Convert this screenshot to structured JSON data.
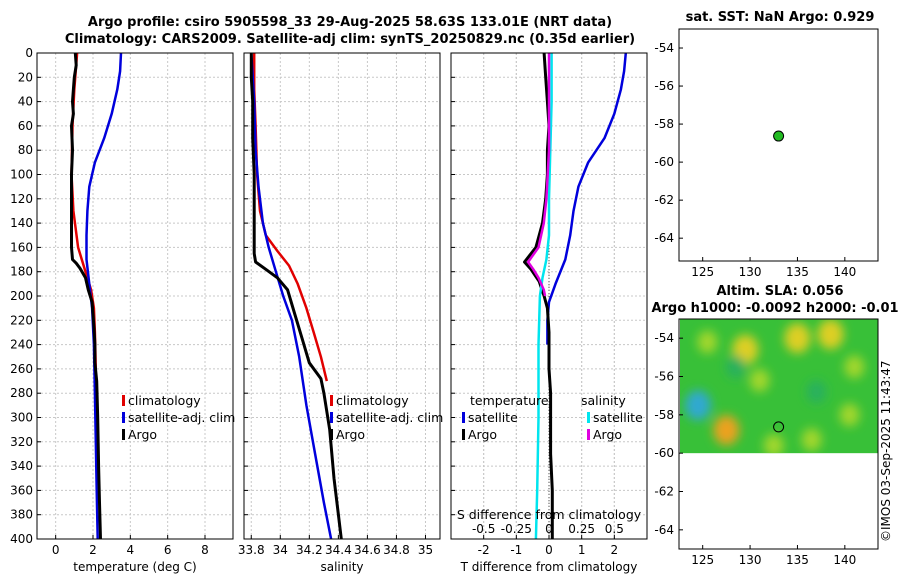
{
  "titles": {
    "main": "Argo profile: csiro 5905598_33 29-Aug-2025 58.63S 133.01E (NRT data)",
    "sub": "Climatology: CARS2009. Satellite-adj clim: synTS_20250829.nc (0.35d earlier)"
  },
  "credit": "©IMOS 03-Sep-2025 11:43:47",
  "colors": {
    "argo": "#000000",
    "climatology": "#e10000",
    "satellite": "#0000dc",
    "sat_salinity": "#00e5ee",
    "argo_salinity": "#e000e0",
    "argo_marker": "#22bb22"
  },
  "chart_data": [
    {
      "type": "line",
      "title": "",
      "xlabel": "temperature (deg C)",
      "ylabel": "",
      "xlim": [
        -1,
        9.5
      ],
      "ylim": [
        400,
        0
      ],
      "xticks": [
        0,
        2,
        4,
        6,
        8
      ],
      "yticks": [
        0,
        20,
        40,
        60,
        80,
        100,
        120,
        140,
        160,
        180,
        200,
        220,
        240,
        260,
        280,
        300,
        320,
        340,
        360,
        380,
        400
      ],
      "grid": true,
      "legend": {
        "position": "lower-right",
        "entries": [
          "climatology",
          "satellite-adj. clim",
          "Argo"
        ]
      },
      "series": [
        {
          "name": "climatology",
          "color": "#e10000",
          "points": [
            [
              1.15,
              0
            ],
            [
              1.1,
              10
            ],
            [
              1.0,
              30
            ],
            [
              0.9,
              60
            ],
            [
              0.85,
              100
            ],
            [
              0.95,
              130
            ],
            [
              1.2,
              160
            ],
            [
              1.6,
              180
            ],
            [
              1.9,
              195
            ],
            [
              2.05,
              210
            ],
            [
              2.1,
              230
            ],
            [
              2.15,
              260
            ]
          ]
        },
        {
          "name": "satellite-adj. clim",
          "color": "#0000dc",
          "points": [
            [
              3.5,
              0
            ],
            [
              3.45,
              15
            ],
            [
              3.3,
              30
            ],
            [
              3.0,
              50
            ],
            [
              2.6,
              70
            ],
            [
              2.1,
              90
            ],
            [
              1.8,
              110
            ],
            [
              1.7,
              130
            ],
            [
              1.65,
              150
            ],
            [
              1.65,
              170
            ],
            [
              1.8,
              190
            ],
            [
              1.95,
              210
            ],
            [
              2.05,
              240
            ],
            [
              2.1,
              280
            ],
            [
              2.15,
              320
            ],
            [
              2.2,
              360
            ],
            [
              2.25,
              400
            ]
          ]
        },
        {
          "name": "Argo",
          "color": "#000000",
          "points": [
            [
              1.05,
              0
            ],
            [
              1.1,
              10
            ],
            [
              1.0,
              20
            ],
            [
              0.95,
              30
            ],
            [
              0.9,
              40
            ],
            [
              0.95,
              50
            ],
            [
              0.85,
              60
            ],
            [
              0.9,
              80
            ],
            [
              0.85,
              100
            ],
            [
              0.85,
              120
            ],
            [
              0.85,
              140
            ],
            [
              0.85,
              160
            ],
            [
              0.9,
              170
            ],
            [
              1.1,
              173
            ],
            [
              1.3,
              177
            ],
            [
              1.6,
              185
            ],
            [
              1.75,
              195
            ],
            [
              1.95,
              205
            ],
            [
              2.0,
              215
            ],
            [
              2.05,
              225
            ],
            [
              2.1,
              240
            ],
            [
              2.1,
              255
            ],
            [
              2.2,
              270
            ],
            [
              2.25,
              300
            ],
            [
              2.3,
              340
            ],
            [
              2.35,
              370
            ],
            [
              2.4,
              400
            ]
          ]
        }
      ]
    },
    {
      "type": "line",
      "xlabel": "salinity",
      "xlim": [
        33.75,
        35.1
      ],
      "ylim": [
        400,
        0
      ],
      "xticks": [
        33.8,
        34,
        34.2,
        34.4,
        34.6,
        34.8,
        35
      ],
      "xtick_labels": [
        "33.8",
        "34",
        "34.2",
        "34.4",
        "34.6",
        "34.8",
        "35"
      ],
      "grid": true,
      "legend": {
        "position": "lower-right",
        "entries": [
          "climatology",
          "satellite-adj. clim",
          "Argo"
        ]
      },
      "series": [
        {
          "name": "climatology",
          "color": "#e10000",
          "points": [
            [
              33.82,
              0
            ],
            [
              33.82,
              30
            ],
            [
              33.83,
              60
            ],
            [
              33.84,
              100
            ],
            [
              33.86,
              130
            ],
            [
              33.9,
              150
            ],
            [
              33.98,
              163
            ],
            [
              34.06,
              175
            ],
            [
              34.12,
              190
            ],
            [
              34.18,
              210
            ],
            [
              34.23,
              230
            ],
            [
              34.28,
              250
            ],
            [
              34.32,
              270
            ]
          ]
        },
        {
          "name": "satellite-adj. clim",
          "color": "#0000dc",
          "points": [
            [
              33.8,
              0
            ],
            [
              33.82,
              40
            ],
            [
              33.83,
              80
            ],
            [
              33.85,
              110
            ],
            [
              33.88,
              140
            ],
            [
              33.92,
              160
            ],
            [
              33.97,
              180
            ],
            [
              34.02,
              200
            ],
            [
              34.08,
              220
            ],
            [
              34.13,
              250
            ],
            [
              34.18,
              290
            ],
            [
              34.24,
              330
            ],
            [
              34.3,
              370
            ],
            [
              34.35,
              400
            ]
          ]
        },
        {
          "name": "Argo",
          "color": "#000000",
          "points": [
            [
              33.8,
              0
            ],
            [
              33.8,
              20
            ],
            [
              33.81,
              40
            ],
            [
              33.81,
              70
            ],
            [
              33.82,
              100
            ],
            [
              33.82,
              130
            ],
            [
              33.82,
              150
            ],
            [
              33.82,
              165
            ],
            [
              33.83,
              172
            ],
            [
              33.9,
              178
            ],
            [
              33.98,
              185
            ],
            [
              34.05,
              195
            ],
            [
              34.1,
              215
            ],
            [
              34.15,
              235
            ],
            [
              34.2,
              255
            ],
            [
              34.28,
              268
            ],
            [
              34.3,
              280
            ],
            [
              34.34,
              310
            ],
            [
              34.37,
              350
            ],
            [
              34.4,
              380
            ],
            [
              34.42,
              400
            ]
          ]
        }
      ]
    },
    {
      "type": "line",
      "xlabel": "T difference from climatology",
      "top_axis_label": "S difference from climatology",
      "xlim": [
        -3,
        3
      ],
      "ylim": [
        400,
        0
      ],
      "xticks": [
        -2,
        -1,
        0,
        1,
        2
      ],
      "xtick_labels": [
        "-2",
        "-1",
        "0",
        "1",
        "2"
      ],
      "top_xticks": [
        -0.5,
        -0.25,
        0,
        0.25,
        0.5
      ],
      "top_xtick_labels": [
        "-0.5",
        "-0.25",
        "0",
        "0.25",
        "0.5"
      ],
      "s_xlim": [
        -0.75,
        0.75
      ],
      "grid": true,
      "legend": {
        "position": "lower",
        "temperature_header": "temperature",
        "salinity_header": "salinity",
        "entries": [
          "satellite",
          "Argo",
          "satellite",
          "Argo"
        ]
      },
      "series": [
        {
          "name": "temperature satellite",
          "group": "temperature",
          "color": "#0000dc",
          "points": [
            [
              2.35,
              0
            ],
            [
              2.3,
              15
            ],
            [
              2.2,
              30
            ],
            [
              2.0,
              50
            ],
            [
              1.7,
              70
            ],
            [
              1.2,
              90
            ],
            [
              0.9,
              110
            ],
            [
              0.75,
              130
            ],
            [
              0.65,
              150
            ],
            [
              0.5,
              170
            ],
            [
              0.2,
              190
            ],
            [
              0.0,
              205
            ],
            [
              -0.05,
              220
            ],
            [
              -0.05,
              240
            ]
          ]
        },
        {
          "name": "temperature Argo",
          "group": "temperature",
          "color": "#000000",
          "points": [
            [
              -0.15,
              0
            ],
            [
              -0.1,
              20
            ],
            [
              -0.05,
              40
            ],
            [
              0.0,
              60
            ],
            [
              -0.05,
              80
            ],
            [
              -0.05,
              100
            ],
            [
              -0.1,
              120
            ],
            [
              -0.2,
              140
            ],
            [
              -0.4,
              160
            ],
            [
              -0.75,
              172
            ],
            [
              -0.55,
              178
            ],
            [
              -0.3,
              188
            ],
            [
              -0.15,
              200
            ],
            [
              -0.05,
              210
            ],
            [
              0.0,
              230
            ],
            [
              0.0,
              260
            ],
            [
              0.05,
              280
            ],
            [
              0.05,
              300
            ],
            [
              0.05,
              330
            ],
            [
              0.1,
              360
            ],
            [
              0.1,
              400
            ]
          ]
        },
        {
          "name": "salinity satellite",
          "group": "salinity",
          "color": "#00e5ee",
          "points": [
            [
              0.02,
              0
            ],
            [
              0.02,
              40
            ],
            [
              0.01,
              80
            ],
            [
              0.0,
              120
            ],
            [
              0.0,
              150
            ],
            [
              -0.02,
              170
            ],
            [
              -0.05,
              185
            ],
            [
              -0.07,
              200
            ],
            [
              -0.08,
              240
            ],
            [
              -0.08,
              300
            ],
            [
              -0.09,
              360
            ],
            [
              -0.1,
              400
            ]
          ]
        },
        {
          "name": "salinity Argo",
          "group": "salinity",
          "color": "#e000e0",
          "points": [
            [
              0.0,
              0
            ],
            [
              0.0,
              20
            ],
            [
              0.0,
              40
            ],
            [
              0.0,
              60
            ],
            [
              0.0,
              80
            ],
            [
              -0.01,
              100
            ],
            [
              -0.02,
              120
            ],
            [
              -0.04,
              140
            ],
            [
              -0.08,
              160
            ],
            [
              -0.16,
              172
            ],
            [
              -0.12,
              178
            ],
            [
              -0.08,
              185
            ],
            [
              -0.06,
              190
            ],
            [
              -0.04,
              195
            ],
            [
              -0.03,
              200
            ]
          ]
        }
      ]
    },
    {
      "type": "map",
      "title": "sat. SST: NaN Argo: 0.929",
      "xlim": [
        122.5,
        143.5
      ],
      "ylim": [
        -65.2,
        -53
      ],
      "xticks": [
        125,
        130,
        135,
        140
      ],
      "yticks": [
        -54,
        -56,
        -58,
        -60,
        -62,
        -64
      ],
      "marker": {
        "lon": 133.01,
        "lat": -58.63,
        "color": "#22bb22"
      }
    },
    {
      "type": "heatmap",
      "title": "Altim. SLA: 0.056",
      "subtitle": "Argo h1000: -0.0092 h2000: -0.01",
      "xlim": [
        122.5,
        143.5
      ],
      "ylim": [
        -65,
        -53
      ],
      "data_lat_range": [
        -60,
        -53
      ],
      "xticks": [
        125,
        130,
        135,
        140
      ],
      "yticks": [
        -54,
        -56,
        -58,
        -60,
        -62,
        -64
      ],
      "marker": {
        "lon": 133.01,
        "lat": -58.63
      },
      "features": [
        {
          "lon": 124.5,
          "lat": -57.5,
          "value": -0.12
        },
        {
          "lon": 127.5,
          "lat": -58.8,
          "value": 0.15
        },
        {
          "lon": 125.5,
          "lat": -54.2,
          "value": 0.08
        },
        {
          "lon": 129.5,
          "lat": -54.6,
          "value": 0.1
        },
        {
          "lon": 135.0,
          "lat": -54.0,
          "value": 0.1
        },
        {
          "lon": 138.5,
          "lat": -53.8,
          "value": 0.11
        },
        {
          "lon": 141.0,
          "lat": -55.5,
          "value": 0.07
        },
        {
          "lon": 131.0,
          "lat": -56.2,
          "value": 0.06
        },
        {
          "lon": 136.5,
          "lat": -59.3,
          "value": 0.07
        },
        {
          "lon": 132.5,
          "lat": -59.6,
          "value": 0.06
        },
        {
          "lon": 140.5,
          "lat": -58.0,
          "value": 0.06
        },
        {
          "lon": 128.5,
          "lat": -55.5,
          "value": -0.02
        },
        {
          "lon": 137.0,
          "lat": -56.8,
          "value": -0.02
        }
      ]
    }
  ]
}
